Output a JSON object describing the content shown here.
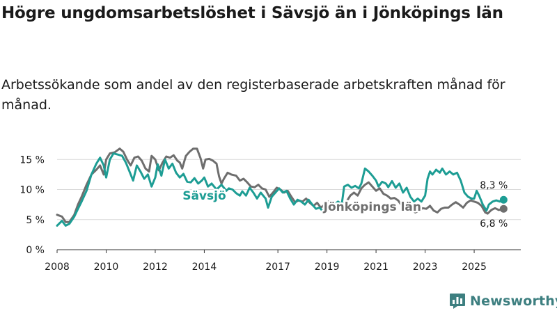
{
  "title": "Högre ungdomsarbetslöshet i Sävsjö än i Jönköpings län",
  "subtitle": "Arbetssökande som andel av den registerbaserade arbetskraften månad för månad.",
  "brand": {
    "name": "Newsworthy",
    "icon": "newsworthy-logo-icon",
    "color": "#3d7f80"
  },
  "chart_data": {
    "type": "line",
    "ylim": [
      0,
      17
    ],
    "xlim": [
      2008,
      2026.9
    ],
    "yticks": [
      0,
      5,
      10,
      15
    ],
    "ytick_labels": [
      "0 %",
      "5 %",
      "10 %",
      "15 %"
    ],
    "xticks": [
      2008,
      2010,
      2012,
      2014,
      2017,
      2019,
      2021,
      2023,
      2025
    ],
    "xtick_labels": [
      "2008",
      "2010",
      "2012",
      "2014",
      "2017",
      "2019",
      "2021",
      "2023",
      "2025"
    ],
    "grid": true,
    "series": [
      {
        "name": "Sävsjö",
        "label": "Sävsjö",
        "color": "#1d9d94",
        "end_label": "8,3 %",
        "end_value": 8.3,
        "points": [
          [
            2008.0,
            4.0
          ],
          [
            2008.2,
            4.8
          ],
          [
            2008.35,
            4.0
          ],
          [
            2008.5,
            4.3
          ],
          [
            2008.7,
            5.5
          ],
          [
            2008.85,
            6.8
          ],
          [
            2009.0,
            8.0
          ],
          [
            2009.2,
            9.8
          ],
          [
            2009.4,
            12.5
          ],
          [
            2009.6,
            14.3
          ],
          [
            2009.75,
            15.3
          ],
          [
            2009.9,
            14.0
          ],
          [
            2010.0,
            12.0
          ],
          [
            2010.15,
            15.0
          ],
          [
            2010.3,
            16.0
          ],
          [
            2010.5,
            15.8
          ],
          [
            2010.65,
            15.6
          ],
          [
            2010.8,
            14.5
          ],
          [
            2010.95,
            13.0
          ],
          [
            2011.1,
            11.5
          ],
          [
            2011.25,
            14.0
          ],
          [
            2011.4,
            13.0
          ],
          [
            2011.55,
            11.8
          ],
          [
            2011.7,
            12.5
          ],
          [
            2011.85,
            10.5
          ],
          [
            2012.0,
            12.0
          ],
          [
            2012.1,
            14.2
          ],
          [
            2012.25,
            12.3
          ],
          [
            2012.4,
            15.0
          ],
          [
            2012.55,
            13.5
          ],
          [
            2012.7,
            14.3
          ],
          [
            2012.85,
            12.8
          ],
          [
            2013.0,
            12.0
          ],
          [
            2013.15,
            12.6
          ],
          [
            2013.3,
            11.3
          ],
          [
            2013.45,
            11.2
          ],
          [
            2013.6,
            11.9
          ],
          [
            2013.75,
            11.0
          ],
          [
            2013.9,
            11.5
          ],
          [
            2014.0,
            12.0
          ],
          [
            2014.15,
            10.5
          ],
          [
            2014.3,
            11.0
          ],
          [
            2014.5,
            10.0
          ],
          [
            2014.7,
            10.8
          ],
          [
            2014.9,
            9.8
          ],
          [
            2015.0,
            10.2
          ],
          [
            2015.15,
            10.0
          ],
          [
            2015.3,
            9.4
          ],
          [
            2015.45,
            9.0
          ],
          [
            2015.55,
            9.7
          ],
          [
            2015.7,
            9.0
          ],
          [
            2015.85,
            10.3
          ],
          [
            2016.0,
            9.5
          ],
          [
            2016.15,
            8.5
          ],
          [
            2016.3,
            9.5
          ],
          [
            2016.5,
            8.5
          ],
          [
            2016.6,
            7.0
          ],
          [
            2016.75,
            8.8
          ],
          [
            2016.9,
            9.5
          ],
          [
            2017.05,
            10.2
          ],
          [
            2017.2,
            9.5
          ],
          [
            2017.35,
            9.8
          ],
          [
            2017.5,
            8.5
          ],
          [
            2017.65,
            7.5
          ],
          [
            2017.8,
            8.3
          ],
          [
            2017.95,
            8.0
          ],
          [
            2018.1,
            7.5
          ],
          [
            2018.25,
            8.3
          ],
          [
            2018.4,
            7.5
          ],
          [
            2018.55,
            6.8
          ],
          [
            2018.7,
            7.0
          ],
          [
            2018.85,
            6.3
          ],
          [
            2019.0,
            7.2
          ],
          [
            2019.15,
            7.8
          ],
          [
            2019.3,
            7.5
          ],
          [
            2019.45,
            8.0
          ],
          [
            2019.6,
            7.5
          ],
          [
            2019.7,
            10.5
          ],
          [
            2019.85,
            10.8
          ],
          [
            2020.0,
            10.3
          ],
          [
            2020.15,
            10.6
          ],
          [
            2020.3,
            10.2
          ],
          [
            2020.4,
            11.0
          ],
          [
            2020.55,
            13.5
          ],
          [
            2020.7,
            13.0
          ],
          [
            2020.85,
            12.3
          ],
          [
            2021.0,
            11.5
          ],
          [
            2021.1,
            10.5
          ],
          [
            2021.25,
            11.3
          ],
          [
            2021.4,
            11.0
          ],
          [
            2021.5,
            10.4
          ],
          [
            2021.65,
            11.4
          ],
          [
            2021.8,
            10.3
          ],
          [
            2021.95,
            11.0
          ],
          [
            2022.1,
            9.5
          ],
          [
            2022.25,
            10.3
          ],
          [
            2022.4,
            8.8
          ],
          [
            2022.55,
            8.0
          ],
          [
            2022.7,
            8.5
          ],
          [
            2022.85,
            8.0
          ],
          [
            2023.0,
            9.0
          ],
          [
            2023.1,
            11.8
          ],
          [
            2023.2,
            13.0
          ],
          [
            2023.3,
            12.5
          ],
          [
            2023.45,
            13.3
          ],
          [
            2023.6,
            12.8
          ],
          [
            2023.7,
            13.5
          ],
          [
            2023.85,
            12.5
          ],
          [
            2024.0,
            13.0
          ],
          [
            2024.15,
            12.5
          ],
          [
            2024.3,
            12.8
          ],
          [
            2024.45,
            11.5
          ],
          [
            2024.6,
            9.5
          ],
          [
            2024.75,
            8.8
          ],
          [
            2024.9,
            8.5
          ],
          [
            2025.0,
            8.5
          ],
          [
            2025.1,
            9.8
          ],
          [
            2025.2,
            9.0
          ],
          [
            2025.35,
            7.5
          ],
          [
            2025.5,
            6.5
          ],
          [
            2025.6,
            7.5
          ],
          [
            2025.75,
            8.0
          ],
          [
            2025.9,
            8.2
          ],
          [
            2026.05,
            8.0
          ],
          [
            2026.2,
            8.3
          ]
        ]
      },
      {
        "name": "Jönköpings län",
        "label": "Jönköpings län",
        "color": "#6e6e6e",
        "end_label": "6,8 %",
        "end_value": 6.8,
        "points": [
          [
            2008.0,
            5.8
          ],
          [
            2008.2,
            5.5
          ],
          [
            2008.35,
            4.6
          ],
          [
            2008.5,
            4.6
          ],
          [
            2008.7,
            5.8
          ],
          [
            2008.85,
            7.5
          ],
          [
            2009.0,
            8.8
          ],
          [
            2009.2,
            10.8
          ],
          [
            2009.4,
            12.5
          ],
          [
            2009.6,
            13.3
          ],
          [
            2009.75,
            14.0
          ],
          [
            2009.9,
            12.5
          ],
          [
            2010.0,
            15.0
          ],
          [
            2010.15,
            16.0
          ],
          [
            2010.35,
            16.2
          ],
          [
            2010.55,
            16.8
          ],
          [
            2010.7,
            16.3
          ],
          [
            2010.85,
            15.0
          ],
          [
            2011.0,
            14.0
          ],
          [
            2011.15,
            15.3
          ],
          [
            2011.3,
            15.5
          ],
          [
            2011.45,
            14.8
          ],
          [
            2011.6,
            13.5
          ],
          [
            2011.75,
            13.0
          ],
          [
            2011.85,
            15.6
          ],
          [
            2012.0,
            15.0
          ],
          [
            2012.15,
            13.2
          ],
          [
            2012.3,
            14.5
          ],
          [
            2012.45,
            15.5
          ],
          [
            2012.6,
            15.3
          ],
          [
            2012.75,
            15.7
          ],
          [
            2012.9,
            14.8
          ],
          [
            2013.0,
            14.5
          ],
          [
            2013.1,
            13.5
          ],
          [
            2013.25,
            15.6
          ],
          [
            2013.4,
            16.3
          ],
          [
            2013.55,
            16.8
          ],
          [
            2013.7,
            16.8
          ],
          [
            2013.85,
            15.2
          ],
          [
            2013.95,
            13.5
          ],
          [
            2014.05,
            15.0
          ],
          [
            2014.2,
            15.1
          ],
          [
            2014.35,
            14.8
          ],
          [
            2014.5,
            14.3
          ],
          [
            2014.6,
            12.2
          ],
          [
            2014.7,
            11.0
          ],
          [
            2014.8,
            11.8
          ],
          [
            2014.95,
            12.8
          ],
          [
            2015.1,
            12.5
          ],
          [
            2015.3,
            12.3
          ],
          [
            2015.45,
            11.5
          ],
          [
            2015.6,
            11.8
          ],
          [
            2015.75,
            11.2
          ],
          [
            2015.9,
            10.5
          ],
          [
            2016.05,
            10.4
          ],
          [
            2016.2,
            10.8
          ],
          [
            2016.35,
            10.2
          ],
          [
            2016.5,
            10.0
          ],
          [
            2016.65,
            8.8
          ],
          [
            2016.8,
            9.5
          ],
          [
            2016.95,
            10.3
          ],
          [
            2017.1,
            10.0
          ],
          [
            2017.25,
            9.5
          ],
          [
            2017.4,
            9.8
          ],
          [
            2017.55,
            8.8
          ],
          [
            2017.7,
            7.9
          ],
          [
            2017.85,
            8.2
          ],
          [
            2018.0,
            8.0
          ],
          [
            2018.15,
            8.5
          ],
          [
            2018.3,
            7.8
          ],
          [
            2018.45,
            7.3
          ],
          [
            2018.6,
            7.8
          ],
          [
            2018.75,
            7.0
          ],
          [
            2018.9,
            7.5
          ],
          [
            2019.05,
            8.0
          ],
          [
            2019.2,
            7.0
          ],
          [
            2019.35,
            6.5
          ],
          [
            2019.5,
            7.0
          ],
          [
            2019.65,
            7.5
          ],
          [
            2019.8,
            8.0
          ],
          [
            2019.95,
            9.0
          ],
          [
            2020.1,
            9.5
          ],
          [
            2020.25,
            9.0
          ],
          [
            2020.4,
            10.2
          ],
          [
            2020.55,
            10.8
          ],
          [
            2020.7,
            11.2
          ],
          [
            2020.85,
            10.5
          ],
          [
            2021.0,
            9.8
          ],
          [
            2021.15,
            10.2
          ],
          [
            2021.3,
            9.3
          ],
          [
            2021.45,
            9.0
          ],
          [
            2021.6,
            8.5
          ],
          [
            2021.75,
            8.6
          ],
          [
            2021.9,
            8.2
          ],
          [
            2022.05,
            7.3
          ],
          [
            2022.2,
            7.0
          ],
          [
            2022.35,
            6.8
          ],
          [
            2022.5,
            6.5
          ],
          [
            2022.6,
            6.2
          ],
          [
            2022.75,
            6.5
          ],
          [
            2022.9,
            6.9
          ],
          [
            2023.05,
            6.8
          ],
          [
            2023.2,
            7.3
          ],
          [
            2023.35,
            6.5
          ],
          [
            2023.5,
            6.2
          ],
          [
            2023.65,
            6.8
          ],
          [
            2023.8,
            7.0
          ],
          [
            2023.95,
            7.0
          ],
          [
            2024.1,
            7.5
          ],
          [
            2024.25,
            7.9
          ],
          [
            2024.4,
            7.5
          ],
          [
            2024.55,
            7.0
          ],
          [
            2024.7,
            7.8
          ],
          [
            2024.85,
            8.2
          ],
          [
            2025.0,
            8.0
          ],
          [
            2025.15,
            7.8
          ],
          [
            2025.3,
            7.3
          ],
          [
            2025.45,
            6.2
          ],
          [
            2025.55,
            6.0
          ],
          [
            2025.7,
            6.6
          ],
          [
            2025.85,
            6.9
          ],
          [
            2026.0,
            6.6
          ],
          [
            2026.2,
            6.8
          ]
        ]
      }
    ]
  }
}
